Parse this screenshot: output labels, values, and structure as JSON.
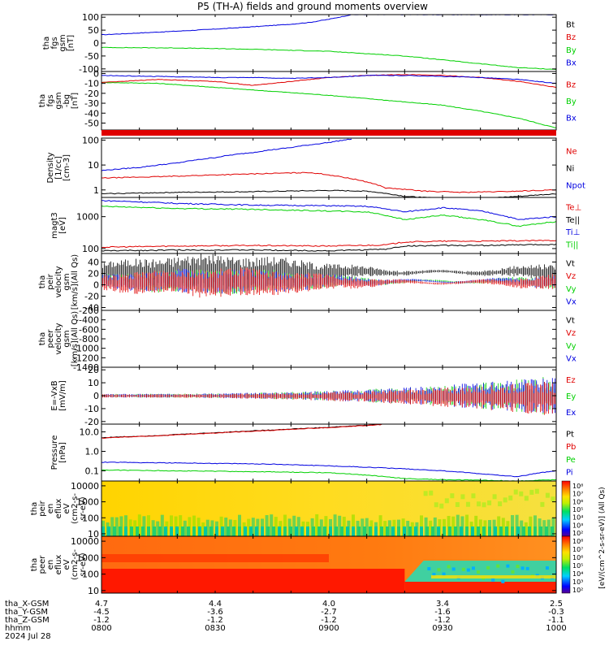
{
  "title": "P5 (TH-A) fields and ground moments overview",
  "colors": {
    "black": "#000000",
    "red": "#e00000",
    "green": "#00d000",
    "blue": "#0000e0"
  },
  "chart_data": [
    {
      "type": "line",
      "ylabel": [
        "tha",
        "fgs",
        "gsm",
        "[nT]"
      ],
      "ylim": [
        -110,
        110
      ],
      "yticks": [
        100,
        50,
        0,
        -50,
        -100
      ],
      "legend": [
        {
          "label": "Bt",
          "color": "#000000"
        },
        {
          "label": "Bz",
          "color": "#e00000"
        },
        {
          "label": "By",
          "color": "#00d000"
        },
        {
          "label": "Bx",
          "color": "#0000e0"
        }
      ],
      "series": [
        {
          "name": "Bx",
          "color": "#0000e0",
          "x": [
            0,
            10,
            20,
            30,
            40,
            50,
            55,
            60,
            66,
            120
          ],
          "y": [
            32,
            39,
            46,
            54,
            63,
            73,
            80,
            92,
            110,
            110
          ]
        },
        {
          "name": "By",
          "color": "#00d000",
          "x": [
            0,
            20,
            40,
            60,
            80,
            100,
            110,
            120
          ],
          "y": [
            -17,
            -19,
            -24,
            -32,
            -50,
            -80,
            -95,
            -102
          ]
        }
      ]
    },
    {
      "type": "line",
      "ylabel": [
        "tha",
        "fgs",
        "gsm",
        "-bg",
        "[nT]"
      ],
      "ylim": [
        -57,
        2
      ],
      "yticks": [
        0,
        -10,
        -20,
        -30,
        -40,
        -50
      ],
      "legend": [
        {
          "label": "Bz",
          "color": "#e00000"
        },
        {
          "label": "By",
          "color": "#00d000"
        },
        {
          "label": "Bx",
          "color": "#0000e0"
        }
      ],
      "series": [
        {
          "name": "By",
          "color": "#00d000",
          "x": [
            0,
            15,
            30,
            45,
            60,
            75,
            90,
            100,
            110,
            120
          ],
          "y": [
            -9,
            -10,
            -14,
            -18,
            -22,
            -27,
            -32,
            -38,
            -45,
            -55
          ]
        },
        {
          "name": "Bz",
          "color": "#e00000",
          "x": [
            0,
            15,
            30,
            40,
            50,
            60,
            70,
            80,
            90,
            100,
            110,
            120
          ],
          "y": [
            -9,
            -6,
            -8,
            -12,
            -8,
            -4,
            -2,
            -1,
            -2,
            -4,
            -8,
            -14
          ]
        },
        {
          "name": "Bx",
          "color": "#0000e0",
          "x": [
            0,
            15,
            30,
            40,
            50,
            60,
            70,
            80,
            90,
            100,
            110,
            120
          ],
          "y": [
            -2,
            -3,
            -4,
            -4,
            -5,
            -4,
            -2,
            -2,
            -3,
            -4,
            -6,
            -10
          ]
        }
      ]
    },
    {
      "type": "line",
      "ylabel": [
        "Density",
        "[1/cc]",
        "[cm-3]"
      ],
      "yscale": "log",
      "ylim": [
        0.5,
        120
      ],
      "yticks": [
        100,
        10,
        1
      ],
      "ytick_labels": [
        "100",
        "10",
        "1"
      ],
      "legend": [
        {
          "label": "Ne",
          "color": "#e00000"
        },
        {
          "label": "Ni",
          "color": "#000000"
        },
        {
          "label": "Npot",
          "color": "#0000e0"
        }
      ],
      "series": [
        {
          "name": "Npot",
          "color": "#0000e0",
          "x": [
            0,
            10,
            20,
            30,
            40,
            50,
            60,
            66
          ],
          "y": [
            6,
            8,
            12,
            20,
            32,
            50,
            80,
            110
          ]
        },
        {
          "name": "Ne",
          "color": "#e00000",
          "x": [
            0,
            15,
            30,
            45,
            55,
            65,
            75,
            85,
            95,
            105,
            120
          ],
          "y": [
            3,
            3.4,
            4,
            4.6,
            5,
            3,
            1.2,
            0.9,
            0.8,
            0.85,
            1
          ]
        },
        {
          "name": "Ni",
          "color": "#000000",
          "x": [
            0,
            20,
            40,
            60,
            70,
            80,
            90,
            100,
            110,
            120
          ],
          "y": [
            0.7,
            0.8,
            0.85,
            0.95,
            0.9,
            0.55,
            0.45,
            0.45,
            0.55,
            0.7
          ]
        }
      ]
    },
    {
      "type": "line",
      "ylabel": [
        "magt3",
        "[eV]"
      ],
      "yscale": "log",
      "ylim": [
        70,
        4000
      ],
      "yticks": [
        1000,
        100
      ],
      "ytick_labels": [
        "1000",
        "100"
      ],
      "legend": [
        {
          "label": "Te⊥",
          "color": "#e00000"
        },
        {
          "label": "Te||",
          "color": "#000000"
        },
        {
          "label": "Ti⊥",
          "color": "#0000e0"
        },
        {
          "label": "Ti||",
          "color": "#00d000"
        }
      ],
      "series": [
        {
          "name": "Ti⊥",
          "color": "#0000e0",
          "x": [
            0,
            20,
            40,
            60,
            70,
            80,
            90,
            100,
            110,
            120
          ],
          "y": [
            3200,
            2600,
            2300,
            2200,
            2100,
            1400,
            1900,
            1500,
            800,
            1000
          ]
        },
        {
          "name": "Ti||",
          "color": "#00d000",
          "x": [
            0,
            20,
            40,
            60,
            70,
            80,
            90,
            100,
            110,
            120
          ],
          "y": [
            2100,
            1800,
            1700,
            1500,
            1400,
            800,
            1100,
            800,
            500,
            700
          ]
        },
        {
          "name": "Te⊥",
          "color": "#e00000",
          "x": [
            0,
            20,
            40,
            60,
            75,
            80,
            90,
            100,
            110,
            120
          ],
          "y": [
            110,
            120,
            125,
            120,
            130,
            160,
            170,
            170,
            175,
            180
          ]
        },
        {
          "name": "Te||",
          "color": "#000000",
          "x": [
            0,
            20,
            40,
            60,
            75,
            80,
            90,
            100,
            110,
            120
          ],
          "y": [
            85,
            90,
            90,
            85,
            95,
            120,
            125,
            125,
            130,
            135
          ]
        }
      ]
    },
    {
      "type": "line",
      "ylabel": [
        "tha",
        "peir",
        "velocity",
        "gsm",
        "[km/s](All Qs)"
      ],
      "ylim": [
        -45,
        55
      ],
      "yticks": [
        40,
        20,
        0,
        -20,
        -40
      ],
      "legend": [
        {
          "label": "Vt",
          "color": "#000000"
        },
        {
          "label": "Vz",
          "color": "#e00000"
        },
        {
          "label": "Vy",
          "color": "#00d000"
        },
        {
          "label": "Vx",
          "color": "#0000e0"
        }
      ]
    },
    {
      "type": "line",
      "ylabel": [
        "tha",
        "peer",
        "velocity",
        "gsm",
        "[km/s](All Qs)"
      ],
      "ylim": [
        -1400,
        -200
      ],
      "yticks": [
        -200,
        -400,
        -600,
        -800,
        -1000,
        -1200,
        -1400
      ],
      "legend": [
        {
          "label": "Vt",
          "color": "#000000"
        },
        {
          "label": "Vz",
          "color": "#e00000"
        },
        {
          "label": "Vy",
          "color": "#00d000"
        },
        {
          "label": "Vx",
          "color": "#0000e0"
        }
      ]
    },
    {
      "type": "line",
      "ylabel": [
        "E=-VxB",
        "[mV/m]"
      ],
      "ylim": [
        -22,
        22
      ],
      "yticks": [
        20,
        10,
        0,
        -10,
        -20
      ],
      "legend": [
        {
          "label": "Ez",
          "color": "#e00000"
        },
        {
          "label": "Ey",
          "color": "#00d000"
        },
        {
          "label": "Ex",
          "color": "#0000e0"
        }
      ]
    },
    {
      "type": "line",
      "ylabel": [
        "Pressure",
        "[nPa]"
      ],
      "yscale": "log",
      "ylim": [
        0.03,
        25
      ],
      "yticks": [
        10,
        1,
        0.1
      ],
      "ytick_labels": [
        "10.0",
        "1.0",
        "0.1"
      ],
      "legend": [
        {
          "label": "Pt",
          "color": "#000000"
        },
        {
          "label": "Pb",
          "color": "#e00000"
        },
        {
          "label": "Pe",
          "color": "#00d000"
        },
        {
          "label": "Pi",
          "color": "#0000e0"
        }
      ],
      "series": [
        {
          "name": "Pt",
          "color": "#000000",
          "x": [
            0,
            15,
            30,
            45,
            60,
            70,
            74
          ],
          "y": [
            5,
            6.5,
            9,
            12.5,
            17,
            22,
            25
          ]
        },
        {
          "name": "Pb",
          "color": "#e00000",
          "x": [
            0,
            15,
            30,
            45,
            60,
            70,
            74
          ],
          "y": [
            4.8,
            6.3,
            8.7,
            12,
            16.5,
            21,
            24
          ]
        },
        {
          "name": "Pi",
          "color": "#0000e0",
          "x": [
            0,
            15,
            30,
            45,
            60,
            75,
            90,
            100,
            110,
            120
          ],
          "y": [
            0.28,
            0.26,
            0.24,
            0.22,
            0.18,
            0.14,
            0.1,
            0.07,
            0.05,
            0.1
          ]
        },
        {
          "name": "Pe",
          "color": "#00d000",
          "x": [
            0,
            20,
            40,
            60,
            75,
            80,
            90,
            100,
            110,
            120
          ],
          "y": [
            0.11,
            0.1,
            0.09,
            0.08,
            0.05,
            0.04,
            0.035,
            0.033,
            0.03,
            0.035
          ]
        }
      ]
    },
    {
      "type": "heatmap",
      "ylabel": [
        "tha",
        "peir",
        "en",
        "eflux",
        "eV",
        "(cm2-s-",
        "sr-eV)"
      ],
      "yscale": "log",
      "ylim": [
        7,
        20000
      ],
      "yticks": [
        10000,
        1000,
        100,
        10
      ],
      "ytick_labels": [
        "10000",
        "1000",
        "100",
        "10"
      ]
    },
    {
      "type": "heatmap",
      "ylabel": [
        "tha",
        "peer",
        "en",
        "eflux",
        "eV",
        "(cm2-s-",
        "sr-eV)"
      ],
      "yscale": "log",
      "ylim": [
        7,
        20000
      ],
      "yticks": [
        10000,
        1000,
        100,
        10
      ],
      "ytick_labels": [
        "10000",
        "1000",
        "100",
        "10"
      ]
    }
  ],
  "colorbar": {
    "label": "[eV/(cm^2-s-sr-eV)] (All Qs)",
    "ticks": [
      "10⁸",
      "10⁷",
      "10⁶",
      "10⁵",
      "10⁴",
      "10³",
      "10²"
    ]
  },
  "xaxis": {
    "ticks_min": [
      0,
      30,
      60,
      90,
      120
    ],
    "rows": [
      {
        "label": "tha_X-GSM",
        "values": [
          "4.7",
          "4.4",
          "4.0",
          "3.4",
          "2.5"
        ]
      },
      {
        "label": "tha_Y-GSM",
        "values": [
          "-4.5",
          "-3.6",
          "-2.7",
          "-1.6",
          "-0.3"
        ]
      },
      {
        "label": "tha_Z-GSM",
        "values": [
          "-1.2",
          "-1.2",
          "-1.2",
          "-1.2",
          "-1.1"
        ]
      },
      {
        "label": "hhmm",
        "values": [
          "0800",
          "0830",
          "0900",
          "0930",
          "1000"
        ]
      }
    ],
    "date": "2024 Jul 28"
  }
}
